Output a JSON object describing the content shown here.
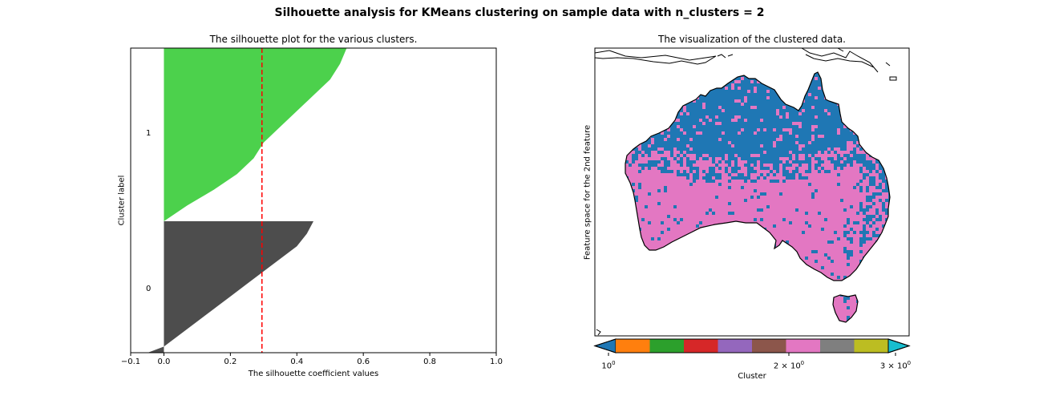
{
  "figure": {
    "suptitle": "Silhouette analysis for KMeans clustering on sample data with n_clusters = 2"
  },
  "chart_data": [
    {
      "type": "area",
      "title": "The silhouette plot for the various clusters.",
      "xlabel": "The silhouette coefficient values",
      "ylabel": "Cluster label",
      "xlim": [
        -0.1,
        1.0
      ],
      "xticks": [
        "−0.1",
        "0.0",
        "0.2",
        "0.4",
        "0.6",
        "0.8",
        "1.0"
      ],
      "average_silhouette_score": 0.295,
      "average_line_color": "#ff0000",
      "clusters": [
        {
          "label": "0",
          "color": "#4d4d4d",
          "sorted_coefficients_from_min_to_max": [
            -0.1,
            0.0,
            0.05,
            0.1,
            0.15,
            0.2,
            0.25,
            0.3,
            0.35,
            0.4,
            0.43,
            0.45
          ],
          "share_of_samples": 0.45
        },
        {
          "label": "1",
          "color": "#4cd14c",
          "sorted_coefficients_from_min_to_max": [
            0.0,
            0.07,
            0.15,
            0.22,
            0.27,
            0.3,
            0.35,
            0.4,
            0.45,
            0.5,
            0.53,
            0.55
          ],
          "share_of_samples": 0.55
        }
      ]
    },
    {
      "type": "heatmap",
      "title": "The visualization of the clustered data.",
      "ylabel": "Feature space for the 2nd feature",
      "region_shown": "Australia",
      "colorbar": {
        "label": "Cluster",
        "ticks": [
          "10^0",
          "2×10^0",
          "3×10^0"
        ],
        "colors": [
          "#1f77b4",
          "#ff7f0e",
          "#2ca02c",
          "#d62728",
          "#9467bd",
          "#8c564b",
          "#e377c2",
          "#7f7f7f",
          "#bcbd22",
          "#17becf"
        ]
      },
      "cluster_colors_in_map": [
        "#1f77b4",
        "#e377c2"
      ]
    }
  ]
}
